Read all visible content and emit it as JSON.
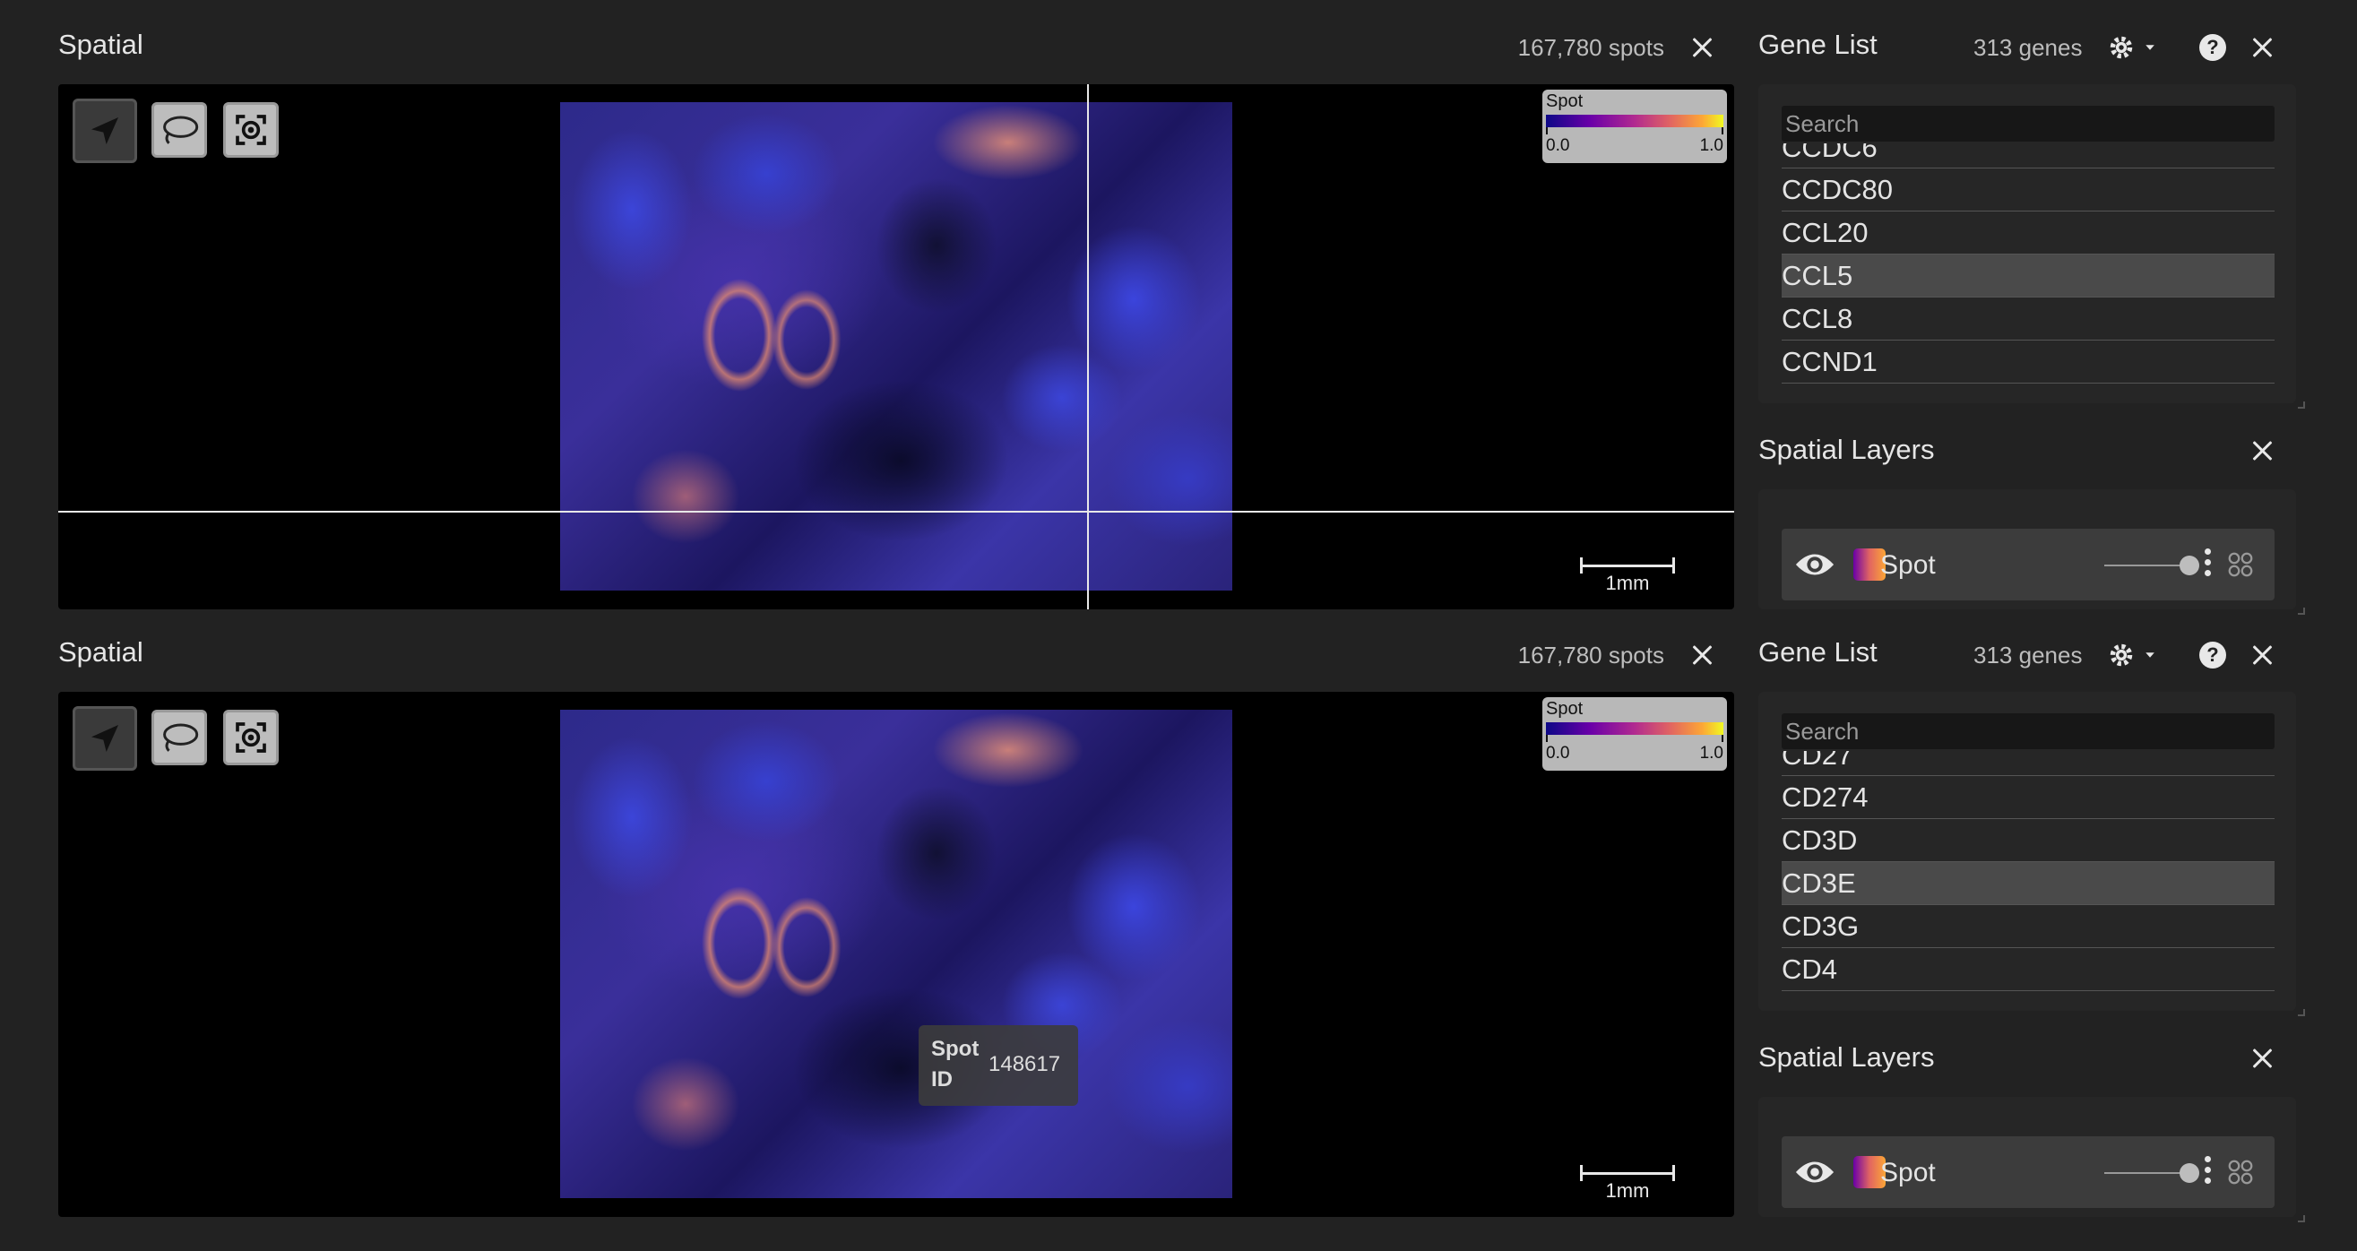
{
  "views": [
    {
      "spatial": {
        "title": "Spatial",
        "spot_count": "167,780 spots",
        "legend": {
          "label": "Spot",
          "min": "0.0",
          "max": "1.0"
        },
        "scalebar": "1mm",
        "tooltip": null
      },
      "gene_list": {
        "title": "Gene List",
        "gene_count": "313 genes",
        "search_placeholder": "Search",
        "items": [
          {
            "label": "CCDC6",
            "selected": false
          },
          {
            "label": "CCDC80",
            "selected": false
          },
          {
            "label": "CCL20",
            "selected": false
          },
          {
            "label": "CCL5",
            "selected": true
          },
          {
            "label": "CCL8",
            "selected": false
          },
          {
            "label": "CCND1",
            "selected": false
          }
        ]
      },
      "layers": {
        "title": "Spatial Layers",
        "layer_name": "Spot"
      }
    },
    {
      "spatial": {
        "title": "Spatial",
        "spot_count": "167,780 spots",
        "legend": {
          "label": "Spot",
          "min": "0.0",
          "max": "1.0"
        },
        "scalebar": "1mm",
        "tooltip": {
          "key": "Spot ID",
          "value": "148617"
        }
      },
      "gene_list": {
        "title": "Gene List",
        "gene_count": "313 genes",
        "search_placeholder": "Search",
        "items": [
          {
            "label": "CD27",
            "selected": false
          },
          {
            "label": "CD274",
            "selected": false
          },
          {
            "label": "CD3D",
            "selected": false
          },
          {
            "label": "CD3E",
            "selected": true
          },
          {
            "label": "CD3G",
            "selected": false
          },
          {
            "label": "CD4",
            "selected": false
          }
        ]
      },
      "layers": {
        "title": "Spatial Layers",
        "layer_name": "Spot"
      }
    }
  ],
  "colors": {
    "background": "#222222",
    "canvas": "#000000",
    "selected_row": "#4a4a4a",
    "colormap": "plasma"
  },
  "icons": {
    "tools": [
      "navigate-arrow-icon",
      "lasso-icon",
      "recenter-icon"
    ],
    "gene_list_header": [
      "gear-icon",
      "caret-down-icon",
      "help-icon",
      "close-icon"
    ],
    "layer_row": [
      "eye-icon",
      "kebab-menu-icon",
      "channels-icon"
    ]
  }
}
